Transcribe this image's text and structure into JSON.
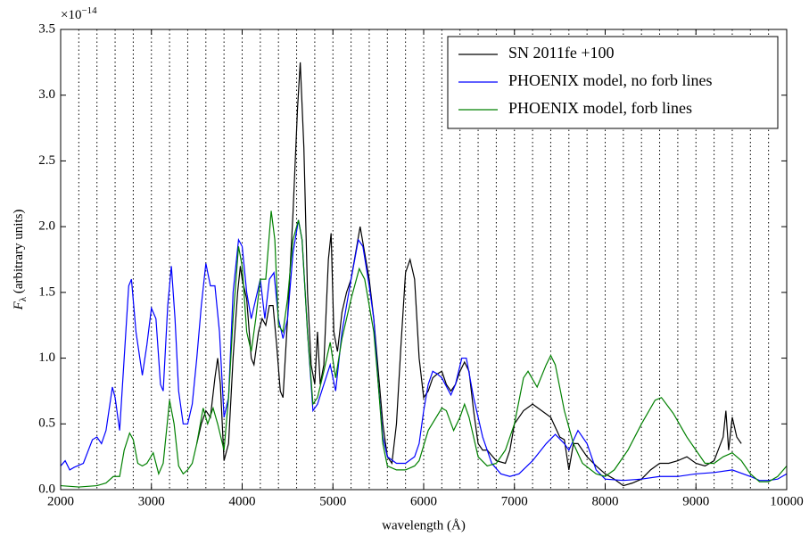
{
  "chart_data": {
    "type": "line",
    "xlabel": "wavelength (Å)",
    "ylabel": {
      "symbol": "F",
      "subscript": "λ",
      "text": " (arbitrary units)"
    },
    "y_scale": {
      "base": "×10",
      "exponent": "−14"
    },
    "xlim": [
      2000,
      10000
    ],
    "ylim": [
      0,
      3.5
    ],
    "xticks": [
      2000,
      3000,
      4000,
      5000,
      6000,
      7000,
      8000,
      9000,
      10000
    ],
    "yticks": [
      {
        "value": 0,
        "label": "0.0"
      },
      0.5,
      {
        "value": 1,
        "label": "1.0"
      },
      1.5,
      {
        "value": 2,
        "label": "2.0"
      },
      2.5,
      {
        "value": 3,
        "label": "3.0"
      },
      3.5
    ],
    "vlines": [
      2200,
      2400,
      2600,
      2800,
      3000,
      3200,
      3400,
      3600,
      3800,
      4000,
      4200,
      4400,
      4600,
      4800,
      5000,
      5200,
      5400,
      5600,
      5800,
      6000,
      6200,
      6400,
      6600,
      6800,
      7000,
      7200,
      7400,
      7600,
      7800,
      8000,
      8200,
      8400,
      8600,
      8800,
      9000,
      9200,
      9400,
      9600,
      9800
    ],
    "legend": "upper right",
    "series": [
      {
        "name": "SN 2011fe +100",
        "color": "#000000",
        "x": [
          3500,
          3550,
          3600,
          3650,
          3700,
          3730,
          3760,
          3800,
          3850,
          3900,
          3950,
          3980,
          4000,
          4050,
          4100,
          4130,
          4180,
          4220,
          4260,
          4300,
          4340,
          4380,
          4420,
          4450,
          4500,
          4560,
          4610,
          4640,
          4680,
          4720,
          4760,
          4800,
          4830,
          4860,
          4900,
          4950,
          4980,
          5010,
          5050,
          5100,
          5150,
          5200,
          5250,
          5300,
          5350,
          5400,
          5450,
          5500,
          5550,
          5600,
          5650,
          5700,
          5750,
          5800,
          5850,
          5900,
          5950,
          6000,
          6050,
          6100,
          6150,
          6200,
          6250,
          6300,
          6350,
          6400,
          6450,
          6500,
          6550,
          6600,
          6650,
          6700,
          6800,
          6900,
          6950,
          7000,
          7050,
          7100,
          7200,
          7300,
          7400,
          7500,
          7550,
          7600,
          7650,
          7700,
          7800,
          7900,
          8000,
          8100,
          8200,
          8300,
          8400,
          8500,
          8600,
          8700,
          8800,
          8900,
          9000,
          9100,
          9200,
          9300,
          9330,
          9360,
          9400,
          9450,
          9500
        ],
        "values": [
          0.35,
          0.5,
          0.6,
          0.55,
          0.85,
          1.0,
          0.8,
          0.22,
          0.35,
          1.0,
          1.5,
          1.7,
          1.6,
          1.45,
          1.0,
          0.95,
          1.2,
          1.3,
          1.25,
          1.4,
          1.4,
          1.1,
          0.75,
          0.7,
          1.3,
          2.1,
          2.9,
          3.25,
          2.6,
          1.5,
          0.95,
          0.8,
          1.2,
          0.8,
          0.95,
          1.75,
          1.95,
          1.2,
          1.05,
          1.35,
          1.5,
          1.6,
          1.8,
          2.0,
          1.8,
          1.6,
          1.3,
          0.9,
          0.5,
          0.25,
          0.2,
          0.5,
          1.1,
          1.65,
          1.75,
          1.6,
          1.0,
          0.7,
          0.75,
          0.85,
          0.88,
          0.9,
          0.8,
          0.75,
          0.8,
          0.9,
          0.97,
          0.9,
          0.6,
          0.35,
          0.3,
          0.3,
          0.22,
          0.2,
          0.3,
          0.5,
          0.55,
          0.6,
          0.65,
          0.6,
          0.55,
          0.4,
          0.38,
          0.15,
          0.35,
          0.35,
          0.25,
          0.18,
          0.12,
          0.08,
          0.03,
          0.05,
          0.08,
          0.15,
          0.2,
          0.2,
          0.22,
          0.25,
          0.2,
          0.18,
          0.22,
          0.4,
          0.6,
          0.3,
          0.55,
          0.4,
          0.35
        ]
      },
      {
        "name": "PHOENIX model, no forb lines",
        "color": "#0000ff",
        "x": [
          2000,
          2050,
          2100,
          2150,
          2250,
          2350,
          2400,
          2450,
          2500,
          2570,
          2600,
          2650,
          2700,
          2750,
          2780,
          2830,
          2900,
          2950,
          3000,
          3050,
          3100,
          3130,
          3180,
          3220,
          3260,
          3300,
          3350,
          3400,
          3450,
          3500,
          3550,
          3600,
          3650,
          3700,
          3750,
          3800,
          3850,
          3900,
          3960,
          4000,
          4050,
          4100,
          4150,
          4200,
          4250,
          4300,
          4350,
          4400,
          4450,
          4500,
          4560,
          4620,
          4660,
          4720,
          4780,
          4830,
          4900,
          4970,
          5030,
          5100,
          5200,
          5280,
          5330,
          5400,
          5450,
          5500,
          5550,
          5600,
          5700,
          5800,
          5900,
          5950,
          6000,
          6050,
          6100,
          6150,
          6200,
          6300,
          6350,
          6420,
          6470,
          6550,
          6650,
          6750,
          6850,
          6950,
          7050,
          7200,
          7350,
          7450,
          7550,
          7600,
          7700,
          7800,
          7900,
          8000,
          8200,
          8400,
          8600,
          8800,
          9000,
          9200,
          9400,
          9600,
          9700,
          9800,
          9900,
          10000
        ],
        "values": [
          0.18,
          0.22,
          0.15,
          0.17,
          0.2,
          0.38,
          0.4,
          0.35,
          0.45,
          0.78,
          0.7,
          0.45,
          1.0,
          1.55,
          1.6,
          1.2,
          0.87,
          1.1,
          1.38,
          1.3,
          0.8,
          0.75,
          1.4,
          1.7,
          1.3,
          0.75,
          0.5,
          0.5,
          0.65,
          1.0,
          1.4,
          1.72,
          1.55,
          1.55,
          1.2,
          0.55,
          0.7,
          1.5,
          1.9,
          1.85,
          1.5,
          1.3,
          1.45,
          1.6,
          1.3,
          1.6,
          1.65,
          1.3,
          1.15,
          1.3,
          1.8,
          2.05,
          1.9,
          1.2,
          0.6,
          0.65,
          0.8,
          0.95,
          0.75,
          1.2,
          1.6,
          1.9,
          1.85,
          1.55,
          1.3,
          0.8,
          0.4,
          0.25,
          0.2,
          0.2,
          0.25,
          0.35,
          0.6,
          0.8,
          0.9,
          0.88,
          0.85,
          0.72,
          0.8,
          1.0,
          1.0,
          0.7,
          0.4,
          0.2,
          0.12,
          0.1,
          0.12,
          0.22,
          0.35,
          0.42,
          0.35,
          0.3,
          0.45,
          0.35,
          0.15,
          0.08,
          0.07,
          0.08,
          0.1,
          0.1,
          0.12,
          0.13,
          0.15,
          0.1,
          0.07,
          0.07,
          0.08,
          0.12
        ]
      },
      {
        "name": "PHOENIX model, forb lines",
        "color": "#008000",
        "x": [
          2000,
          2200,
          2400,
          2500,
          2580,
          2650,
          2700,
          2760,
          2800,
          2850,
          2900,
          2950,
          3020,
          3080,
          3130,
          3200,
          3250,
          3300,
          3350,
          3400,
          3450,
          3500,
          3570,
          3620,
          3680,
          3730,
          3800,
          3850,
          3900,
          3960,
          4000,
          4050,
          4100,
          4150,
          4200,
          4260,
          4320,
          4360,
          4400,
          4450,
          4500,
          4560,
          4620,
          4660,
          4720,
          4780,
          4830,
          4900,
          4970,
          5030,
          5100,
          5200,
          5290,
          5350,
          5450,
          5500,
          5550,
          5600,
          5700,
          5800,
          5900,
          5950,
          6050,
          6200,
          6250,
          6330,
          6400,
          6450,
          6500,
          6600,
          6700,
          6800,
          6900,
          7000,
          7100,
          7150,
          7250,
          7350,
          7400,
          7450,
          7550,
          7650,
          7750,
          7900,
          8000,
          8100,
          8250,
          8400,
          8550,
          8620,
          8750,
          8900,
          9000,
          9100,
          9200,
          9300,
          9400,
          9500,
          9600,
          9700,
          9800,
          9900,
          10000
        ],
        "values": [
          0.03,
          0.02,
          0.03,
          0.05,
          0.1,
          0.1,
          0.3,
          0.43,
          0.38,
          0.2,
          0.18,
          0.2,
          0.28,
          0.12,
          0.2,
          0.68,
          0.5,
          0.18,
          0.12,
          0.15,
          0.2,
          0.35,
          0.62,
          0.5,
          0.62,
          0.5,
          0.3,
          0.7,
          1.3,
          1.85,
          1.7,
          1.2,
          1.05,
          1.3,
          1.6,
          1.6,
          2.12,
          1.9,
          1.25,
          1.2,
          1.45,
          1.9,
          2.05,
          1.9,
          1.2,
          0.65,
          0.7,
          0.9,
          1.12,
          0.85,
          1.15,
          1.45,
          1.68,
          1.6,
          1.2,
          0.8,
          0.35,
          0.18,
          0.15,
          0.15,
          0.18,
          0.22,
          0.45,
          0.62,
          0.6,
          0.45,
          0.55,
          0.65,
          0.55,
          0.25,
          0.18,
          0.2,
          0.3,
          0.5,
          0.85,
          0.9,
          0.78,
          0.95,
          1.02,
          0.95,
          0.6,
          0.35,
          0.2,
          0.12,
          0.1,
          0.15,
          0.3,
          0.5,
          0.68,
          0.7,
          0.58,
          0.4,
          0.3,
          0.2,
          0.2,
          0.25,
          0.28,
          0.22,
          0.12,
          0.06,
          0.06,
          0.1,
          0.18
        ]
      }
    ]
  }
}
